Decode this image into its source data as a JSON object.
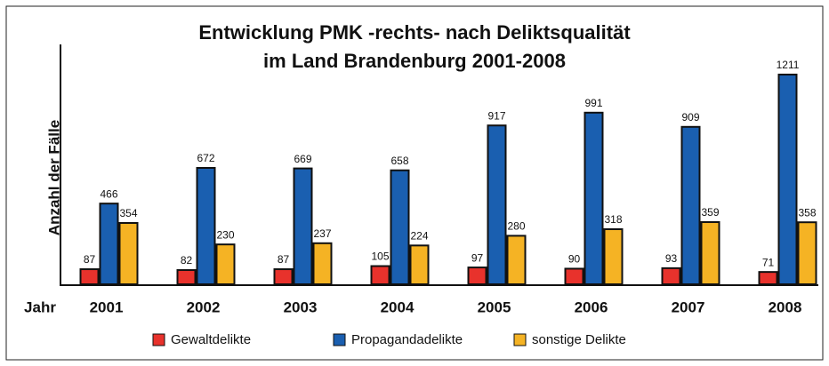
{
  "chart_data": {
    "type": "bar",
    "title": [
      "Entwicklung PMK -rechts- nach Deliktsqualität",
      "im Land Brandenburg 2001-2008"
    ],
    "x_label": "Jahr",
    "y_label": "Anzahl der Fälle",
    "categories": [
      "2001",
      "2002",
      "2003",
      "2004",
      "2005",
      "2006",
      "2007",
      "2008"
    ],
    "series": [
      {
        "name": "Gewaltdelikte",
        "color": "#e8322c",
        "values": [
          87,
          82,
          87,
          105,
          97,
          90,
          93,
          71
        ]
      },
      {
        "name": "Propagandadelikte",
        "color": "#1a5fb0",
        "values": [
          466,
          672,
          669,
          658,
          917,
          991,
          909,
          1211
        ]
      },
      {
        "name": "sonstige Delikte",
        "color": "#f5b324",
        "values": [
          354,
          230,
          237,
          224,
          280,
          318,
          359,
          358
        ]
      }
    ],
    "ylim": [
      0,
      1385
    ],
    "legend": "bottom"
  }
}
